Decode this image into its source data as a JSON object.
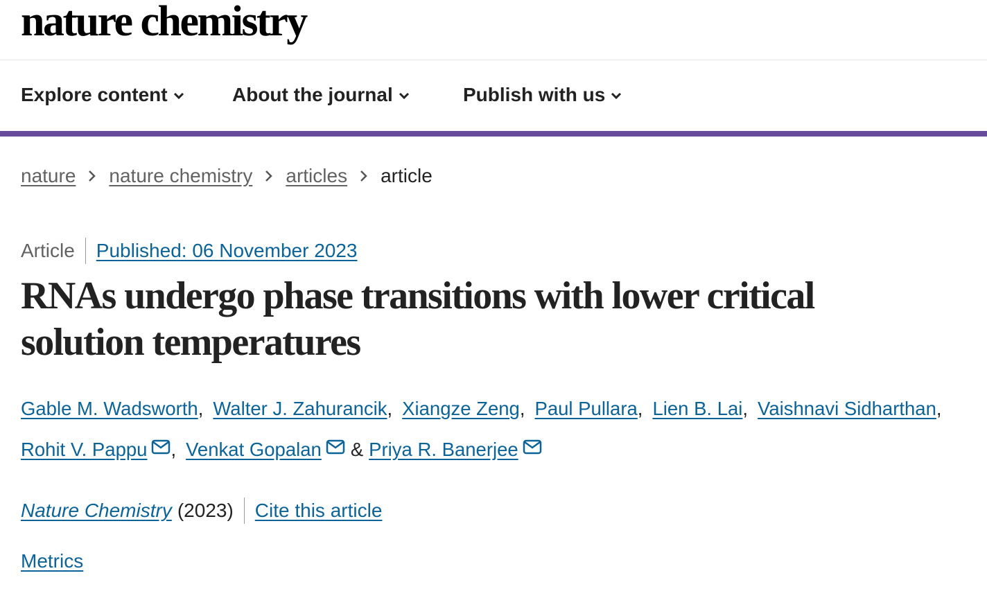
{
  "header": {
    "logo": "nature chemistry"
  },
  "nav": {
    "items": [
      "Explore content",
      "About the journal",
      "Publish with us"
    ]
  },
  "breadcrumbs": [
    "nature",
    "nature chemistry",
    "articles",
    "article"
  ],
  "article": {
    "type": "Article",
    "published": "Published: 06 November 2023",
    "title_lines": [
      "RNAs undergo phase transitions with lower critical",
      "solution temperatures"
    ],
    "authors_line1": [
      "Gable M. Wadsworth",
      "Walter J. Zahurancik",
      "Xiangze Zeng",
      "Paul Pullara",
      "Lien B. Lai",
      "Vaishnavi Sidharthan"
    ],
    "authors_line2": [
      "Rohit V. Pappu",
      "Venkat Gopalan",
      "Priya R. Banerjee"
    ],
    "separator": ",",
    "conjunction": "&",
    "journal": "Nature Chemistry",
    "year": "(2023)",
    "cite": "Cite this article",
    "metrics": "Metrics"
  }
}
